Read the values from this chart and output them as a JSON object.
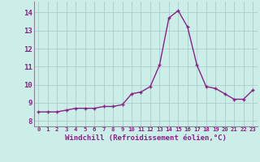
{
  "x": [
    0,
    1,
    2,
    3,
    4,
    5,
    6,
    7,
    8,
    9,
    10,
    11,
    12,
    13,
    14,
    15,
    16,
    17,
    18,
    19,
    20,
    21,
    22,
    23
  ],
  "y": [
    8.5,
    8.5,
    8.5,
    8.6,
    8.7,
    8.7,
    8.7,
    8.8,
    8.8,
    8.9,
    9.5,
    9.6,
    9.9,
    11.1,
    13.7,
    14.1,
    13.2,
    11.1,
    9.9,
    9.8,
    9.5,
    9.2,
    9.2,
    9.7
  ],
  "line_color": "#882288",
  "marker": "+",
  "marker_size": 3.5,
  "marker_lw": 1.0,
  "line_width": 1.0,
  "xlabel": "Windchill (Refroidissement éolien,°C)",
  "xlabel_color": "#882288",
  "ylabel_ticks": [
    8,
    9,
    10,
    11,
    12,
    13,
    14
  ],
  "xtick_labels": [
    "0",
    "1",
    "2",
    "3",
    "4",
    "5",
    "6",
    "7",
    "8",
    "9",
    "10",
    "11",
    "12",
    "13",
    "14",
    "15",
    "16",
    "17",
    "18",
    "19",
    "20",
    "21",
    "22",
    "23"
  ],
  "xlim": [
    -0.5,
    23.5
  ],
  "ylim": [
    7.7,
    14.6
  ],
  "bg_color": "#cceee8",
  "grid_color": "#aacccc",
  "tick_color": "#882288",
  "xlabel_fontsize": 6.5,
  "ytick_fontsize": 6.5,
  "xtick_fontsize": 5.2
}
